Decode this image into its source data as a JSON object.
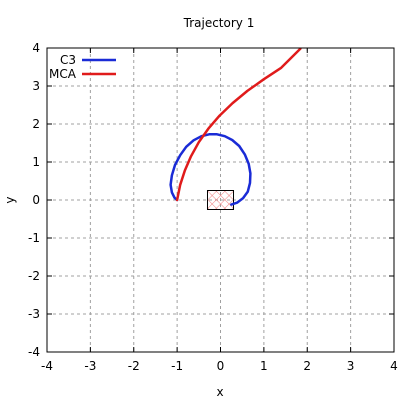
{
  "chart_data": {
    "type": "line",
    "title": "Trajectory 1",
    "xlabel": "x",
    "ylabel": "y",
    "xlim": [
      -4,
      4
    ],
    "ylim": [
      -4,
      4
    ],
    "xticks": [
      -4,
      -3,
      -2,
      -1,
      0,
      1,
      2,
      3,
      4
    ],
    "yticks": [
      -4,
      -3,
      -2,
      -1,
      0,
      1,
      2,
      3,
      4
    ],
    "grid": true,
    "legend_position": "top-left",
    "series": [
      {
        "name": "C3",
        "color": "#1a2bd6",
        "x": [
          0.25,
          0.38,
          0.52,
          0.63,
          0.68,
          0.69,
          0.65,
          0.56,
          0.43,
          0.27,
          0.1,
          -0.08,
          -0.26,
          -0.44,
          -0.62,
          -0.79,
          -0.93,
          -1.05,
          -1.12,
          -1.15,
          -1.12,
          -1.06,
          -1.0
        ],
        "y": [
          -0.12,
          -0.07,
          0.05,
          0.22,
          0.45,
          0.7,
          0.95,
          1.2,
          1.42,
          1.58,
          1.68,
          1.73,
          1.73,
          1.68,
          1.57,
          1.4,
          1.18,
          0.92,
          0.65,
          0.4,
          0.2,
          0.06,
          0.0
        ]
      },
      {
        "name": "MCA",
        "color": "#e01b1b",
        "x": [
          -1.0,
          -0.93,
          -0.82,
          -0.68,
          -0.5,
          -0.28,
          -0.02,
          0.28,
          0.62,
          1.0,
          1.4,
          1.84
        ],
        "y": [
          0.0,
          0.4,
          0.78,
          1.15,
          1.52,
          1.88,
          2.22,
          2.55,
          2.87,
          3.18,
          3.48,
          3.98
        ]
      }
    ],
    "annotations": [
      {
        "type": "hatched-box",
        "x_range": [
          -0.3,
          0.3
        ],
        "y_range": [
          -0.25,
          0.25
        ]
      }
    ]
  }
}
